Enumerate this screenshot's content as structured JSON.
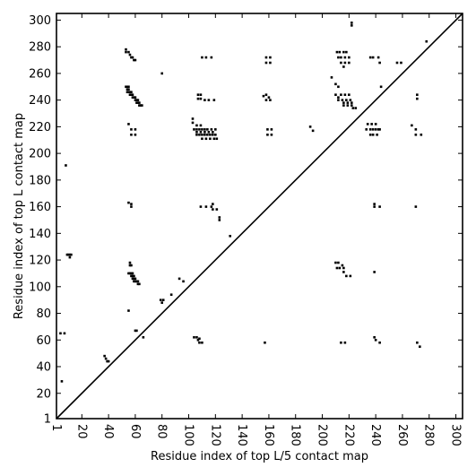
{
  "chart_data": {
    "type": "scatter",
    "xlabel": "Residue index of top L/5 contact map",
    "ylabel": "Residue index of top L contact map",
    "xlim": [
      1,
      305
    ],
    "ylim": [
      1,
      305
    ],
    "x_ticks": [
      "1",
      "20",
      "40",
      "60",
      "80",
      "100",
      "120",
      "140",
      "160",
      "180",
      "200",
      "220",
      "240",
      "260",
      "280",
      "300"
    ],
    "y_ticks": [
      "1",
      "20",
      "40",
      "60",
      "80",
      "100",
      "120",
      "140",
      "160",
      "180",
      "200",
      "220",
      "240",
      "260",
      "280",
      "300"
    ],
    "diagonal": true,
    "grid": false,
    "marker_color": "#000000",
    "series": [
      {
        "values_desc": "",
        "points": [
          [
            5,
            29
          ],
          [
            4,
            65
          ],
          [
            7,
            65
          ],
          [
            8,
            191
          ],
          [
            9,
            124
          ],
          [
            10,
            124
          ],
          [
            11,
            124
          ],
          [
            12,
            124
          ],
          [
            11,
            122
          ],
          [
            37,
            48
          ],
          [
            38,
            46
          ],
          [
            39,
            44
          ],
          [
            40,
            44
          ],
          [
            53,
            278
          ],
          [
            53,
            276
          ],
          [
            55,
            276
          ],
          [
            56,
            274
          ],
          [
            57,
            272
          ],
          [
            58,
            272
          ],
          [
            59,
            270
          ],
          [
            60,
            270
          ],
          [
            53,
            250
          ],
          [
            54,
            250
          ],
          [
            55,
            250
          ],
          [
            54,
            248
          ],
          [
            55,
            248
          ],
          [
            54,
            246
          ],
          [
            55,
            246
          ],
          [
            56,
            246
          ],
          [
            57,
            246
          ],
          [
            56,
            244
          ],
          [
            57,
            244
          ],
          [
            58,
            244
          ],
          [
            58,
            242
          ],
          [
            59,
            242
          ],
          [
            60,
            242
          ],
          [
            60,
            240
          ],
          [
            61,
            240
          ],
          [
            62,
            240
          ],
          [
            61,
            238
          ],
          [
            62,
            238
          ],
          [
            63,
            238
          ],
          [
            63,
            236
          ],
          [
            64,
            236
          ],
          [
            65,
            236
          ],
          [
            55,
            222
          ],
          [
            57,
            218
          ],
          [
            60,
            218
          ],
          [
            57,
            214
          ],
          [
            60,
            214
          ],
          [
            55,
            163
          ],
          [
            57,
            162
          ],
          [
            57,
            160
          ],
          [
            56,
            118
          ],
          [
            56,
            116
          ],
          [
            57,
            116
          ],
          [
            55,
            110
          ],
          [
            56,
            110
          ],
          [
            57,
            110
          ],
          [
            58,
            110
          ],
          [
            57,
            108
          ],
          [
            58,
            108
          ],
          [
            59,
            108
          ],
          [
            58,
            106
          ],
          [
            59,
            106
          ],
          [
            60,
            106
          ],
          [
            59,
            104
          ],
          [
            60,
            104
          ],
          [
            61,
            104
          ],
          [
            62,
            104
          ],
          [
            62,
            102
          ],
          [
            63,
            102
          ],
          [
            55,
            82
          ],
          [
            60,
            67
          ],
          [
            61,
            67
          ],
          [
            66,
            62
          ],
          [
            80,
            260
          ],
          [
            79,
            90
          ],
          [
            81,
            90
          ],
          [
            80,
            88
          ],
          [
            87,
            94
          ],
          [
            93,
            106
          ],
          [
            96,
            104
          ],
          [
            103,
            226
          ],
          [
            103,
            223
          ],
          [
            106,
            221
          ],
          [
            109,
            221
          ],
          [
            104,
            218
          ],
          [
            106,
            218
          ],
          [
            108,
            218
          ],
          [
            110,
            218
          ],
          [
            112,
            218
          ],
          [
            114,
            218
          ],
          [
            117,
            218
          ],
          [
            120,
            218
          ],
          [
            106,
            216
          ],
          [
            109,
            216
          ],
          [
            112,
            216
          ],
          [
            115,
            216
          ],
          [
            118,
            216
          ],
          [
            106,
            214
          ],
          [
            108,
            214
          ],
          [
            110,
            214
          ],
          [
            112,
            214
          ],
          [
            114,
            214
          ],
          [
            116,
            214
          ],
          [
            118,
            214
          ],
          [
            120,
            214
          ],
          [
            110,
            211
          ],
          [
            113,
            211
          ],
          [
            116,
            211
          ],
          [
            119,
            211
          ],
          [
            121,
            211
          ],
          [
            107,
            244
          ],
          [
            109,
            244
          ],
          [
            107,
            241
          ],
          [
            109,
            241
          ],
          [
            112,
            240
          ],
          [
            115,
            240
          ],
          [
            119,
            240
          ],
          [
            110,
            272
          ],
          [
            113,
            272
          ],
          [
            117,
            272
          ],
          [
            109,
            160
          ],
          [
            113,
            160
          ],
          [
            117,
            160
          ],
          [
            118,
            162
          ],
          [
            118,
            158
          ],
          [
            121,
            158
          ],
          [
            123,
            152
          ],
          [
            123,
            150
          ],
          [
            131,
            138
          ],
          [
            104,
            62
          ],
          [
            106,
            62
          ],
          [
            107,
            60
          ],
          [
            108,
            58
          ],
          [
            108,
            61
          ],
          [
            110,
            58
          ],
          [
            156,
            243
          ],
          [
            158,
            244
          ],
          [
            160,
            242
          ],
          [
            161,
            240
          ],
          [
            158,
            240
          ],
          [
            159,
            218
          ],
          [
            162,
            218
          ],
          [
            159,
            214
          ],
          [
            162,
            214
          ],
          [
            158,
            272
          ],
          [
            161,
            272
          ],
          [
            158,
            268
          ],
          [
            161,
            268
          ],
          [
            157,
            58
          ],
          [
            191,
            220
          ],
          [
            193,
            217
          ],
          [
            207,
            257
          ],
          [
            210,
            252
          ],
          [
            212,
            250
          ],
          [
            210,
            244
          ],
          [
            212,
            242
          ],
          [
            214,
            244
          ],
          [
            217,
            244
          ],
          [
            220,
            244
          ],
          [
            212,
            240
          ],
          [
            215,
            240
          ],
          [
            218,
            240
          ],
          [
            221,
            240
          ],
          [
            216,
            238
          ],
          [
            219,
            238
          ],
          [
            222,
            238
          ],
          [
            216,
            236
          ],
          [
            219,
            236
          ],
          [
            222,
            236
          ],
          [
            223,
            234
          ],
          [
            225,
            234
          ],
          [
            211,
            276
          ],
          [
            213,
            276
          ],
          [
            216,
            276
          ],
          [
            218,
            276
          ],
          [
            212,
            272
          ],
          [
            214,
            272
          ],
          [
            217,
            272
          ],
          [
            220,
            272
          ],
          [
            214,
            268
          ],
          [
            217,
            268
          ],
          [
            220,
            268
          ],
          [
            216,
            265
          ],
          [
            210,
            118
          ],
          [
            212,
            118
          ],
          [
            215,
            116
          ],
          [
            211,
            114
          ],
          [
            213,
            114
          ],
          [
            216,
            114
          ],
          [
            216,
            111
          ],
          [
            218,
            108
          ],
          [
            221,
            108
          ],
          [
            214,
            58
          ],
          [
            217,
            58
          ],
          [
            234,
            222
          ],
          [
            237,
            222
          ],
          [
            240,
            222
          ],
          [
            233,
            218
          ],
          [
            236,
            218
          ],
          [
            238,
            218
          ],
          [
            240,
            218
          ],
          [
            242,
            218
          ],
          [
            243,
            218
          ],
          [
            236,
            214
          ],
          [
            238,
            214
          ],
          [
            241,
            214
          ],
          [
            236,
            272
          ],
          [
            238,
            272
          ],
          [
            242,
            272
          ],
          [
            243,
            268
          ],
          [
            244,
            250
          ],
          [
            239,
            162
          ],
          [
            239,
            160
          ],
          [
            243,
            160
          ],
          [
            239,
            111
          ],
          [
            239,
            62
          ],
          [
            240,
            60
          ],
          [
            243,
            58
          ],
          [
            256,
            268
          ],
          [
            259,
            268
          ],
          [
            267,
            221
          ],
          [
            270,
            218
          ],
          [
            270,
            214
          ],
          [
            274,
            214
          ],
          [
            271,
            244
          ],
          [
            271,
            241
          ],
          [
            270,
            160
          ],
          [
            271,
            58
          ],
          [
            273,
            55
          ],
          [
            278,
            284
          ],
          [
            222,
            298
          ],
          [
            222,
            296
          ]
        ]
      }
    ]
  }
}
